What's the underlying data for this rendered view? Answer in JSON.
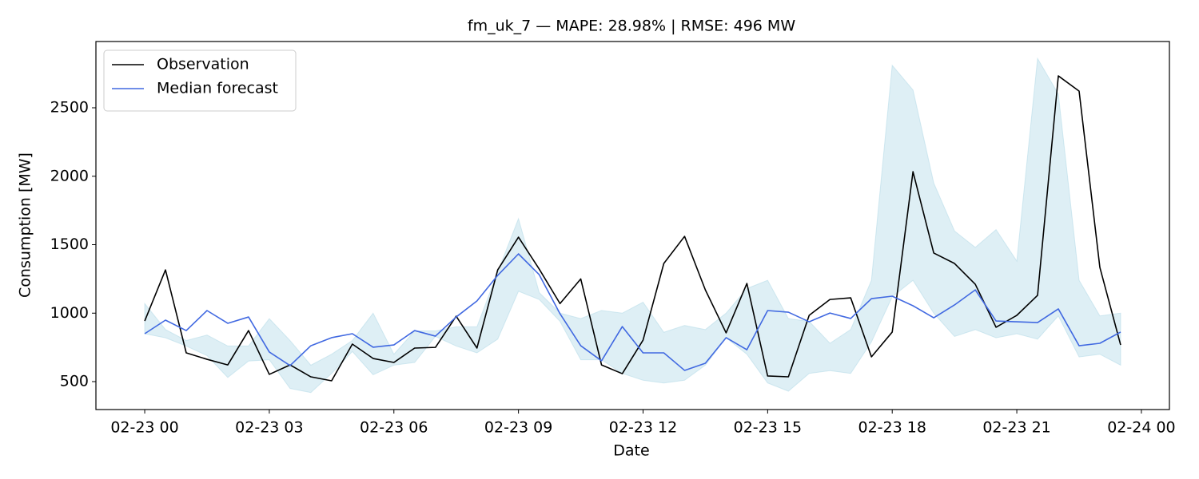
{
  "chart_data": {
    "type": "line",
    "title": "fm_uk_7 — MAPE: 28.98% | RMSE: 496 MW",
    "xlabel": "Date",
    "ylabel": "Consumption [MW]",
    "x": [
      0,
      0.5,
      1,
      1.5,
      2,
      2.5,
      3,
      3.5,
      4,
      4.5,
      5,
      5.5,
      6,
      6.5,
      7,
      7.5,
      8,
      8.5,
      9,
      9.5,
      10,
      10.5,
      11,
      11.5,
      12,
      12.5,
      13,
      13.5,
      14,
      14.5,
      15,
      15.5,
      16,
      16.5,
      17,
      17.5,
      18,
      18.5,
      19,
      19.5,
      20,
      20.5,
      21,
      21.5,
      22,
      22.5,
      23,
      23.5
    ],
    "series": [
      {
        "name": "Observation",
        "color": "#000000",
        "values": [
          943,
          1316,
          710,
          663,
          622,
          873,
          553,
          622,
          535,
          506,
          774,
          669,
          640,
          745,
          750,
          978,
          745,
          1316,
          1555,
          1322,
          1070,
          1250,
          622,
          558,
          803,
          1363,
          1561,
          1170,
          856,
          1217,
          541,
          535,
          984,
          1100,
          1112,
          681,
          862,
          2033,
          1439,
          1363,
          1211,
          897,
          984,
          1130,
          2733,
          2622,
          1334,
          768
        ]
      },
      {
        "name": "Median forecast",
        "color": "#4169e1",
        "values": [
          850,
          949,
          873,
          1019,
          926,
          972,
          716,
          617,
          762,
          821,
          850,
          751,
          768,
          873,
          832,
          972,
          1089,
          1276,
          1433,
          1281,
          996,
          762,
          652,
          902,
          710,
          710,
          582,
          634,
          821,
          733,
          1019,
          1007,
          937,
          1001,
          961,
          1106,
          1124,
          1054,
          966,
          1060,
          1170,
          943,
          937,
          931,
          1031,
          762,
          780,
          862
        ]
      }
    ],
    "band": {
      "color": "#add8e6",
      "lower": [
        850,
        820,
        760,
        690,
        530,
        650,
        660,
        450,
        420,
        560,
        720,
        550,
        620,
        640,
        830,
        760,
        710,
        810,
        1160,
        1100,
        940,
        660,
        660,
        560,
        510,
        490,
        510,
        620,
        820,
        700,
        490,
        430,
        560,
        580,
        560,
        790,
        1120,
        1240,
        1000,
        830,
        880,
        820,
        850,
        810,
        980,
        680,
        700,
        620
      ],
      "upper": [
        1070,
        880,
        800,
        840,
        760,
        760,
        960,
        800,
        620,
        700,
        800,
        1000,
        700,
        870,
        870,
        900,
        900,
        1300,
        1690,
        1150,
        1000,
        960,
        1020,
        1000,
        1080,
        860,
        910,
        880,
        1000,
        1180,
        1240,
        960,
        940,
        780,
        880,
        1240,
        2810,
        2630,
        1950,
        1600,
        1480,
        1610,
        1380,
        2860,
        2600,
        1240,
        980,
        1000
      ]
    },
    "xlim": [
      -1.175,
      24.675
    ],
    "ylim": [
      296,
      2984
    ],
    "xticks": [
      {
        "value": 0,
        "label": "02-23 00"
      },
      {
        "value": 3,
        "label": "02-23 03"
      },
      {
        "value": 6,
        "label": "02-23 06"
      },
      {
        "value": 9,
        "label": "02-23 09"
      },
      {
        "value": 12,
        "label": "02-23 12"
      },
      {
        "value": 15,
        "label": "02-23 15"
      },
      {
        "value": 18,
        "label": "02-23 18"
      },
      {
        "value": 21,
        "label": "02-23 21"
      },
      {
        "value": 24,
        "label": "02-24 00"
      }
    ],
    "yticks": [
      500,
      1000,
      1500,
      2000,
      2500
    ],
    "grid": false,
    "legend": "upper left"
  }
}
